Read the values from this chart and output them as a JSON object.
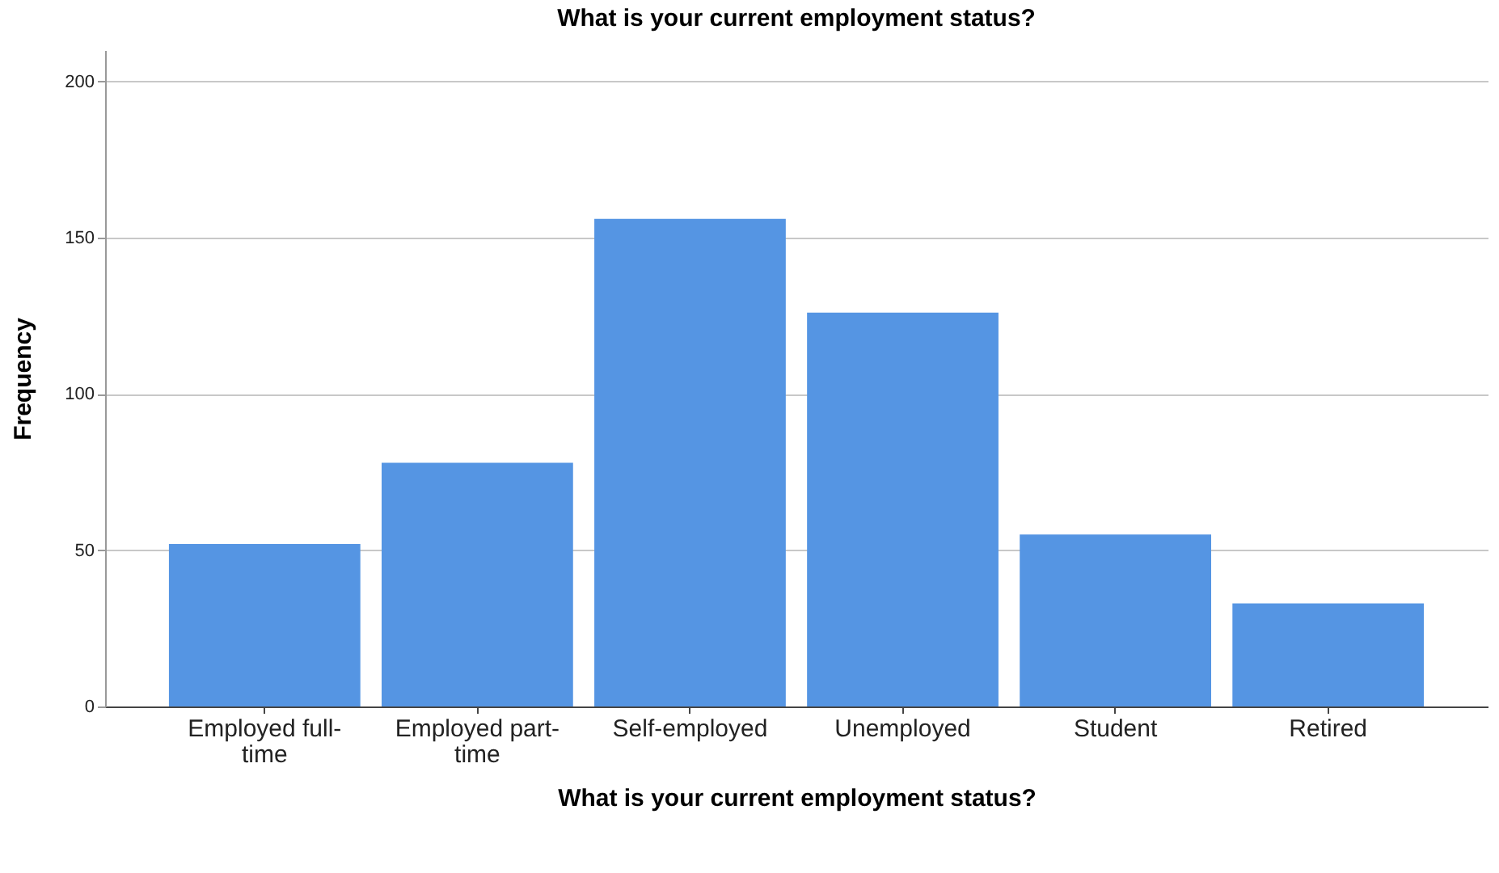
{
  "chart_data": {
    "type": "bar",
    "title": "What is your current employment status?",
    "xlabel": "What is your current employment status?",
    "ylabel": "Frequency",
    "categories": [
      "Employed full-time",
      "Employed part-time",
      "Self-employed",
      "Unemployed",
      "Student",
      "Retired"
    ],
    "values": [
      52,
      78,
      156,
      126,
      55,
      33
    ],
    "color": "#5595e3",
    "ylim": [
      0,
      210
    ],
    "yticks": [
      0,
      50,
      100,
      150,
      200
    ],
    "grid": "y"
  }
}
